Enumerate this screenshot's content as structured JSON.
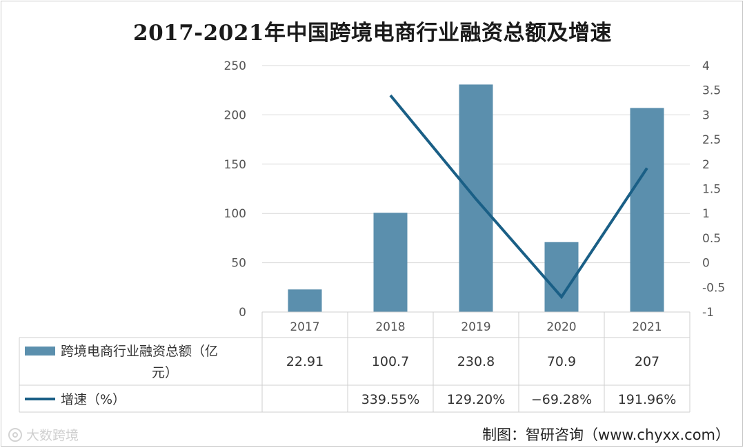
{
  "chart_data": {
    "type": "bar",
    "title": "2017-2021年中国跨境电商行业融资总额及增速",
    "categories": [
      "2017",
      "2018",
      "2019",
      "2020",
      "2021"
    ],
    "series": [
      {
        "name": "跨境电商行业融资总额（亿元）",
        "type": "bar",
        "axis": "left",
        "values": [
          22.91,
          100.7,
          230.8,
          70.9,
          207
        ],
        "labels": [
          "22.91",
          "100.7",
          "230.8",
          "70.9",
          "207"
        ],
        "color": "#5b8fad"
      },
      {
        "name": "增速（%）",
        "type": "line",
        "axis": "right",
        "values": [
          null,
          3.3955,
          1.292,
          -0.6928,
          1.9196
        ],
        "labels": [
          "",
          "339.55%",
          "129.20%",
          "−69.28%",
          "191.96%"
        ],
        "color": "#1a5f86"
      }
    ],
    "y_left": {
      "min": 0,
      "max": 250,
      "ticks": [
        "0",
        "50",
        "100",
        "150",
        "200",
        "250"
      ]
    },
    "y_right": {
      "min": -1,
      "max": 4,
      "ticks": [
        "-1",
        "-0.5",
        "0",
        "0.5",
        "1",
        "1.5",
        "2",
        "2.5",
        "3",
        "3.5",
        "4"
      ]
    },
    "grid": true,
    "legend": "data-table"
  },
  "source": "制图：智研咨询（www.chyxx.com）",
  "watermark": "大数跨境",
  "colors": {
    "grid": "#d9d9d9",
    "table_border": "#cfcfcf"
  }
}
